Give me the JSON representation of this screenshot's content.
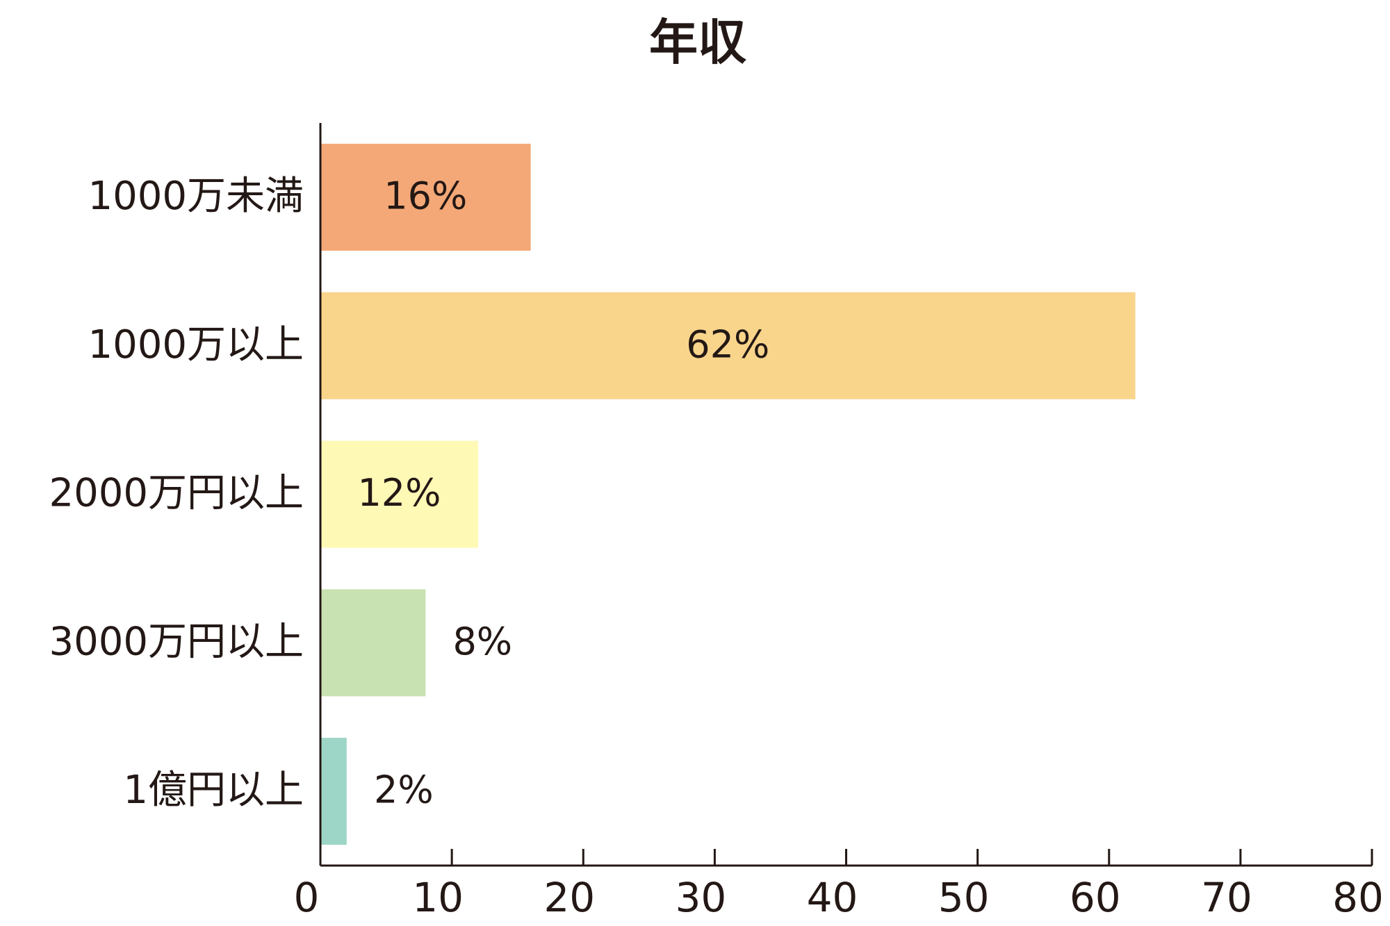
{
  "chart_data": {
    "type": "bar",
    "orientation": "horizontal",
    "title": "年収",
    "categories": [
      "1000万未満",
      "1000万以上",
      "2000万円以上",
      "3000万円以上",
      "1億円以上"
    ],
    "values": [
      16,
      62,
      12,
      8,
      2
    ],
    "value_labels": [
      "16%",
      "62%",
      "12%",
      "8%",
      "2%"
    ],
    "colors": [
      "#f4a877",
      "#f9d48b",
      "#fef9b5",
      "#c9e2b1",
      "#9dd6c6"
    ],
    "xlim": [
      0,
      80
    ],
    "xticks": [
      0,
      10,
      20,
      30,
      40,
      50,
      60,
      70,
      80
    ],
    "grid": false
  }
}
